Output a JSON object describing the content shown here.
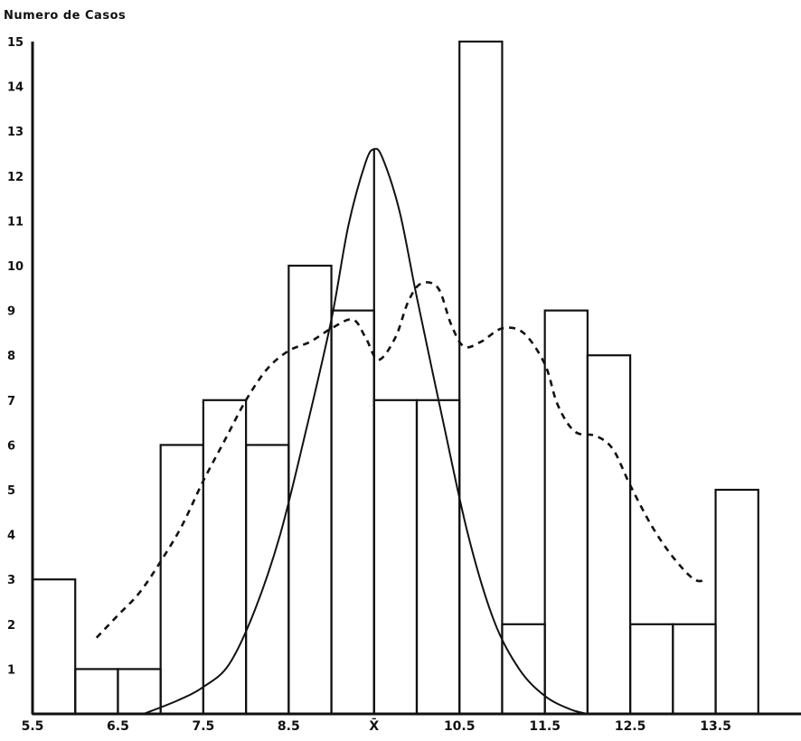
{
  "chart_data": {
    "type": "bar",
    "ylabel": "Numero de Casos",
    "xlabel": "",
    "x_tick_labels": [
      "5.5",
      "6.5",
      "7.5",
      "8.5",
      "X̄",
      "10.5",
      "11.5",
      "12.5",
      "13.5"
    ],
    "y_tick_labels": [
      "1",
      "2",
      "3",
      "4",
      "5",
      "6",
      "7",
      "8",
      "9",
      "10",
      "11",
      "12",
      "13",
      "14",
      "15"
    ],
    "ylim": [
      0,
      15
    ],
    "xlim": [
      5.5,
      14.5
    ],
    "bin_width": 0.5,
    "bins": [
      {
        "start": 5.5,
        "value": 3
      },
      {
        "start": 6.0,
        "value": 1
      },
      {
        "start": 6.5,
        "value": 1
      },
      {
        "start": 7.0,
        "value": 6
      },
      {
        "start": 7.5,
        "value": 7
      },
      {
        "start": 8.0,
        "value": 6
      },
      {
        "start": 8.5,
        "value": 10
      },
      {
        "start": 9.0,
        "value": 9
      },
      {
        "start": 9.5,
        "value": 7
      },
      {
        "start": 10.0,
        "value": 7
      },
      {
        "start": 10.5,
        "value": 15
      },
      {
        "start": 11.0,
        "value": 2
      },
      {
        "start": 11.5,
        "value": 9
      },
      {
        "start": 12.0,
        "value": 8
      },
      {
        "start": 12.5,
        "value": 2
      },
      {
        "start": 13.0,
        "value": 2
      },
      {
        "start": 13.5,
        "value": 5
      }
    ],
    "mean_line_x": 9.5,
    "normal_curve": {
      "style": "solid",
      "points": [
        [
          6.8,
          0
        ],
        [
          7.2,
          0.3
        ],
        [
          7.5,
          0.6
        ],
        [
          7.8,
          1.1
        ],
        [
          8.1,
          2.3
        ],
        [
          8.4,
          4.0
        ],
        [
          8.7,
          6.3
        ],
        [
          9.0,
          8.8
        ],
        [
          9.2,
          10.9
        ],
        [
          9.4,
          12.3
        ],
        [
          9.5,
          12.6
        ],
        [
          9.6,
          12.4
        ],
        [
          9.8,
          11.2
        ],
        [
          10.0,
          9.3
        ],
        [
          10.3,
          6.6
        ],
        [
          10.6,
          4.0
        ],
        [
          10.9,
          2.1
        ],
        [
          11.2,
          1.0
        ],
        [
          11.5,
          0.4
        ],
        [
          11.8,
          0.1
        ],
        [
          12.0,
          0
        ]
      ]
    },
    "smoothed_curve": {
      "style": "dashed",
      "points": [
        [
          6.25,
          1.7
        ],
        [
          6.5,
          2.2
        ],
        [
          6.75,
          2.7
        ],
        [
          7.0,
          3.4
        ],
        [
          7.25,
          4.2
        ],
        [
          7.5,
          5.2
        ],
        [
          7.75,
          6.1
        ],
        [
          8.0,
          7.0
        ],
        [
          8.25,
          7.7
        ],
        [
          8.5,
          8.1
        ],
        [
          8.75,
          8.3
        ],
        [
          9.0,
          8.6
        ],
        [
          9.25,
          8.8
        ],
        [
          9.4,
          8.4
        ],
        [
          9.55,
          7.9
        ],
        [
          9.75,
          8.4
        ],
        [
          9.9,
          9.2
        ],
        [
          10.05,
          9.6
        ],
        [
          10.25,
          9.5
        ],
        [
          10.4,
          8.7
        ],
        [
          10.55,
          8.2
        ],
        [
          10.75,
          8.3
        ],
        [
          11.0,
          8.6
        ],
        [
          11.25,
          8.5
        ],
        [
          11.5,
          7.8
        ],
        [
          11.65,
          6.9
        ],
        [
          11.85,
          6.3
        ],
        [
          12.1,
          6.2
        ],
        [
          12.3,
          5.9
        ],
        [
          12.5,
          5.1
        ],
        [
          12.75,
          4.2
        ],
        [
          13.0,
          3.5
        ],
        [
          13.25,
          3.0
        ],
        [
          13.4,
          3.0
        ]
      ]
    }
  }
}
